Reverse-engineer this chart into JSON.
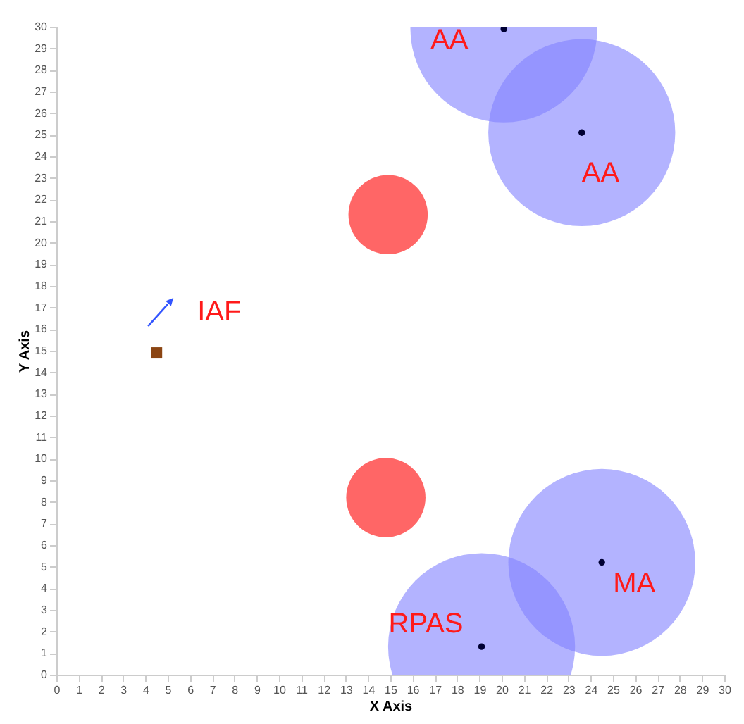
{
  "chart_data": {
    "type": "bubble",
    "xlabel": "X Axis",
    "ylabel": "Y Axis",
    "xlim": [
      0,
      30
    ],
    "ylim": [
      0,
      30
    ],
    "xticks": [
      0,
      1,
      2,
      3,
      4,
      5,
      6,
      7,
      8,
      9,
      10,
      11,
      12,
      13,
      14,
      15,
      16,
      17,
      18,
      19,
      20,
      21,
      22,
      23,
      24,
      25,
      26,
      27,
      28,
      29,
      30
    ],
    "yticks": [
      0,
      1,
      2,
      3,
      4,
      5,
      6,
      7,
      8,
      9,
      10,
      11,
      12,
      13,
      14,
      15,
      16,
      17,
      18,
      19,
      20,
      21,
      22,
      23,
      24,
      25,
      26,
      27,
      28,
      29,
      30
    ],
    "grid": false,
    "series": [
      {
        "color": "#8080ff",
        "x": [
          20.1,
          23.6,
          19.1,
          24.5
        ],
        "values": [
          29.9,
          25.1,
          1.3,
          5.2
        ],
        "sizes": [
          1,
          1,
          1,
          1
        ]
      },
      {
        "color": "#ff0000",
        "x": [
          14.9,
          14.8
        ],
        "values": [
          21.3,
          8.2
        ],
        "sizes": [
          0.18,
          0.18
        ]
      },
      {
        "type": "scatter",
        "marker": "circle",
        "color": "#000033",
        "x": [
          20.1,
          23.6,
          19.1,
          24.5
        ],
        "values": [
          29.9,
          25.1,
          1.3,
          5.2
        ]
      },
      {
        "type": "scatter",
        "marker": "square",
        "color": "#8b4513",
        "x": [
          4.5
        ],
        "values": [
          14.9
        ]
      }
    ],
    "annotations": [
      {
        "text": "AA",
        "x": 20.1,
        "y": 29.9
      },
      {
        "text": "AA",
        "x": 23.6,
        "y": 25.1
      },
      {
        "text": "IAF",
        "x": 4.5,
        "y": 14.9
      },
      {
        "text": "RPAS",
        "x": 19.1,
        "y": 1.3
      },
      {
        "text": "MA",
        "x": 24.5,
        "y": 5.2
      }
    ]
  }
}
